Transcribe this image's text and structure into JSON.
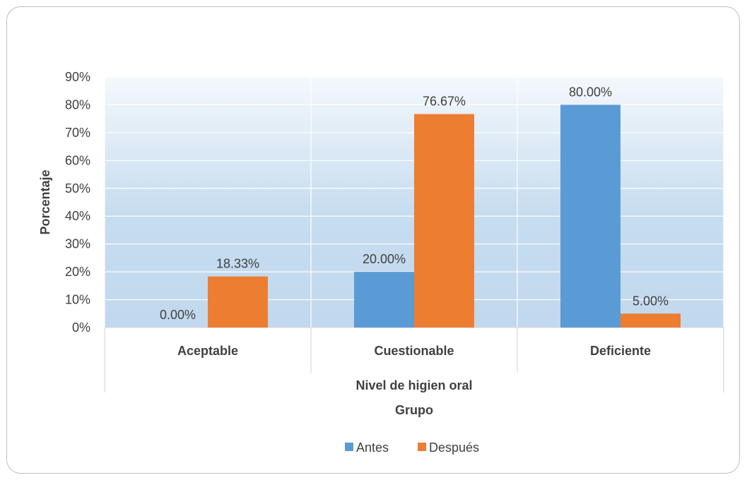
{
  "chart_data": {
    "type": "bar",
    "categories": [
      "Aceptable",
      "Cuestionable",
      "Deficiente"
    ],
    "series": [
      {
        "name": "Antes",
        "values": [
          0.0,
          20.0,
          80.0
        ],
        "labels": [
          "0.00%",
          "20.00%",
          "80.00%"
        ],
        "color": "#5B9BD5"
      },
      {
        "name": "Después",
        "values": [
          18.33,
          76.67,
          5.0
        ],
        "labels": [
          "18.33%",
          "76.67%",
          "5.00%"
        ],
        "color": "#ED7D31"
      }
    ],
    "ylim": [
      0,
      90
    ],
    "yticks": [
      "0%",
      "10%",
      "20%",
      "30%",
      "40%",
      "50%",
      "60%",
      "70%",
      "80%",
      "90%"
    ],
    "ylabel": "Porcentaje",
    "xlabel_group": "Nivel de higien oral",
    "xlabel": "Grupo",
    "legend_position": "bottom",
    "grid": true,
    "plot_background": "gradient light blue"
  }
}
